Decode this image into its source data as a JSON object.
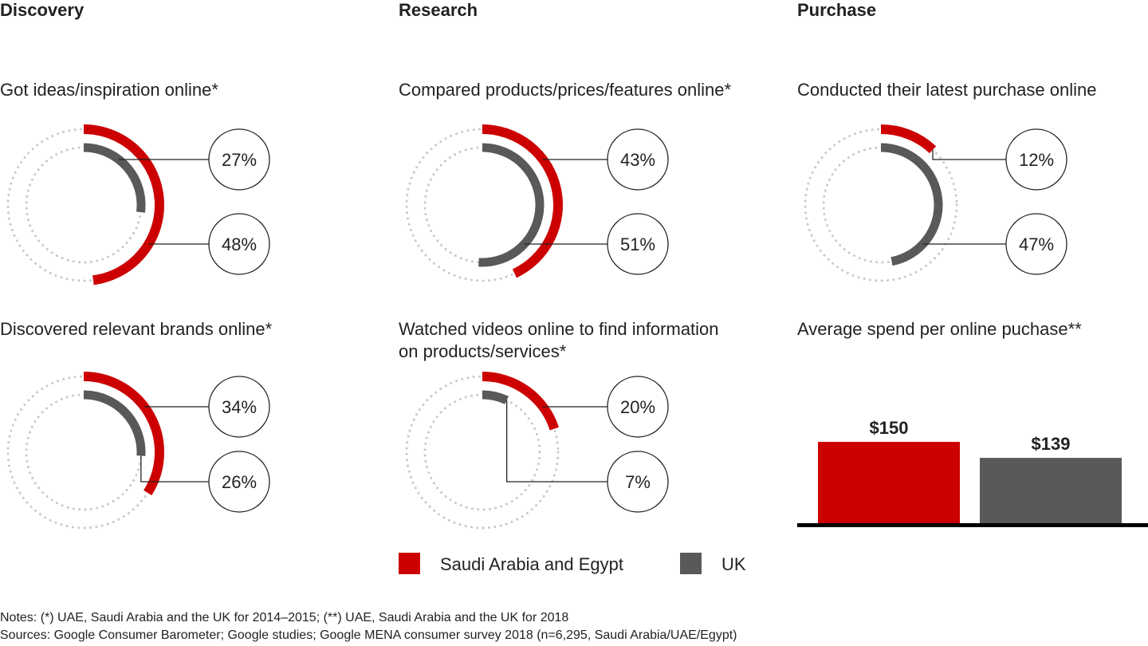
{
  "headers": [
    "Discovery",
    "Research",
    "Purchase"
  ],
  "colors": {
    "saudi_egypt": "#cc0000",
    "uk": "#595959",
    "track": "#c8c8c8"
  },
  "legend": [
    {
      "label": "Saudi Arabia and Egypt",
      "series": "saudi_egypt"
    },
    {
      "label": "UK",
      "series": "uk"
    }
  ],
  "chart_data": [
    {
      "type": "donut",
      "title": "Got ideas/inspiration online*",
      "values": [
        {
          "series": "uk",
          "value": 27,
          "label": "27%"
        },
        {
          "series": "saudi_egypt",
          "value": 48,
          "label": "48%"
        }
      ]
    },
    {
      "type": "donut",
      "title": "Discovered relevant brands online*",
      "values": [
        {
          "series": "saudi_egypt",
          "value": 34,
          "label": "34%"
        },
        {
          "series": "uk",
          "value": 26,
          "label": "26%"
        }
      ]
    },
    {
      "type": "donut",
      "title": "Compared products/prices/features online*",
      "values": [
        {
          "series": "saudi_egypt",
          "value": 43,
          "label": "43%"
        },
        {
          "series": "uk",
          "value": 51,
          "label": "51%"
        }
      ]
    },
    {
      "type": "donut",
      "title": "Watched videos online to find information on products/services*",
      "title_lines": [
        "Watched videos online to find information",
        "on products/services*"
      ],
      "values": [
        {
          "series": "saudi_egypt",
          "value": 20,
          "label": "20%"
        },
        {
          "series": "uk",
          "value": 7,
          "label": "7%"
        }
      ]
    },
    {
      "type": "donut",
      "title": "Conducted their latest purchase online",
      "values": [
        {
          "series": "saudi_egypt",
          "value": 12,
          "label": "12%"
        },
        {
          "series": "uk",
          "value": 47,
          "label": "47%"
        }
      ]
    },
    {
      "type": "bar",
      "title": "Average spend per online puchase**",
      "categories": [
        "Saudi Arabia and Egypt",
        "UK"
      ],
      "values": [
        150,
        139
      ],
      "data_labels": [
        "$150",
        "$139"
      ],
      "unit": "$"
    }
  ],
  "notes": "Notes: (*) UAE, Saudi Arabia and the UK for 2014–2015; (**) UAE, Saudi Arabia and the UK for 2018",
  "sources": "Sources: Google Consumer Barometer; Google studies; Google MENA consumer survey 2018 (n=6,295, Saudi Arabia/UAE/Egypt)"
}
